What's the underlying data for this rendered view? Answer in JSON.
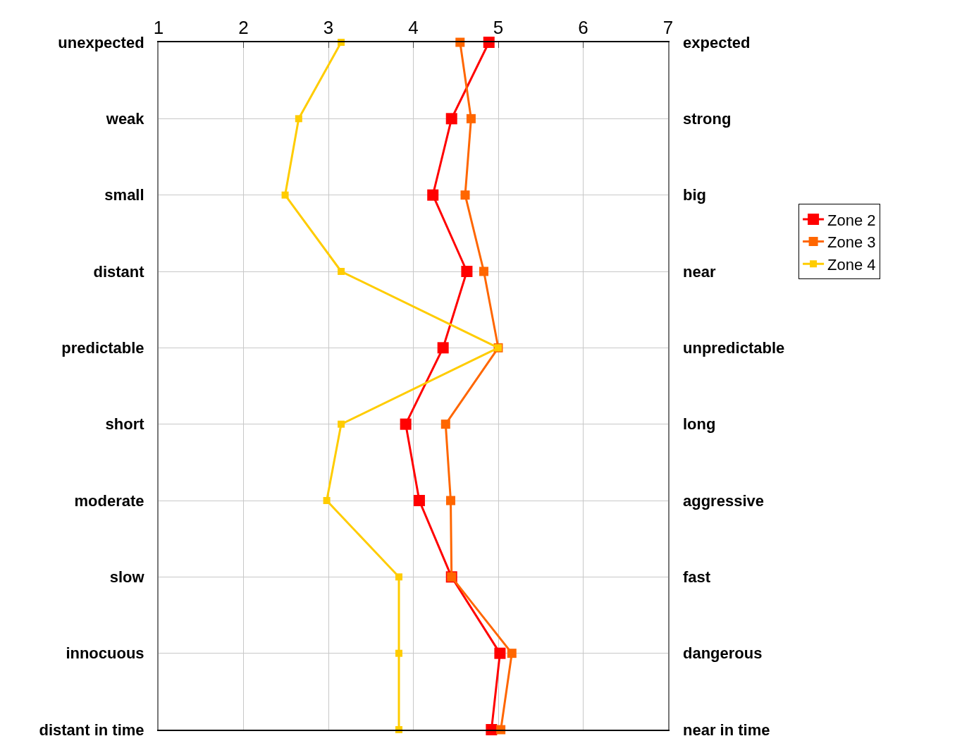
{
  "chart_data": {
    "type": "line",
    "orientation": "horizontal",
    "categories": [
      "unexpected",
      "weak",
      "small",
      "distant",
      "predictable",
      "short",
      "moderate",
      "slow",
      "innocuous",
      "distant in time"
    ],
    "y2_categories": [
      "expected",
      "strong",
      "big",
      "near",
      "unpredictable",
      "long",
      "aggressive",
      "fast",
      "dangerous",
      "near in time"
    ],
    "series": [
      {
        "name": "Zone 2",
        "color": "#ff0000",
        "values": [
          4.89,
          4.45,
          4.23,
          4.63,
          4.35,
          3.91,
          4.07,
          4.45,
          5.02,
          4.92
        ]
      },
      {
        "name": "Zone 3",
        "color": "#ff6600",
        "values": [
          4.55,
          4.68,
          4.61,
          4.83,
          5.0,
          4.38,
          4.44,
          4.45,
          5.16,
          5.03
        ]
      },
      {
        "name": "Zone 4",
        "color": "#ffcc00",
        "values": [
          3.15,
          2.65,
          2.49,
          3.15,
          5.0,
          3.15,
          2.98,
          3.83,
          3.83,
          3.83
        ]
      }
    ],
    "xlim": [
      1,
      7
    ],
    "xticks": [
      1,
      2,
      3,
      4,
      5,
      6,
      7
    ],
    "grid": true,
    "legend": "right",
    "marker": "square",
    "line_style": "solid"
  }
}
